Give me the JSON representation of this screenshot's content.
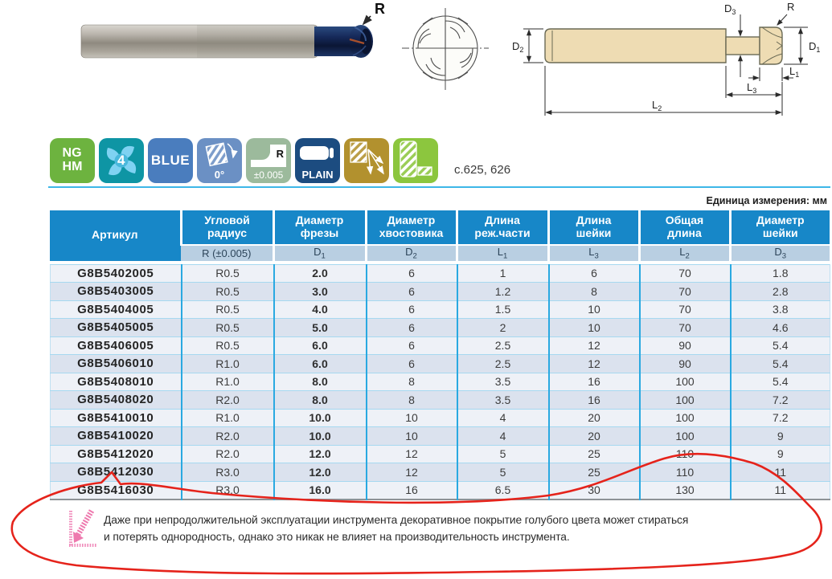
{
  "photo": {
    "radius_label": "R"
  },
  "cross_section": {
    "flutes": 4
  },
  "dimension_diagram": {
    "d2": {
      "base": "D",
      "sub": "2"
    },
    "d3": {
      "base": "D",
      "sub": "3"
    },
    "r": {
      "base": "R",
      "sub": ""
    },
    "d1": {
      "base": "D",
      "sub": "1"
    },
    "l1": {
      "base": "L",
      "sub": "1"
    },
    "l3": {
      "base": "L",
      "sub": "3"
    },
    "l2": {
      "base": "L",
      "sub": "2"
    }
  },
  "badges": {
    "nghm": {
      "line1": "NG",
      "line2": "HM",
      "color": "#6db33f"
    },
    "flutes": {
      "label": "4",
      "color": "#0e95a4"
    },
    "coating": {
      "label": "BLUE",
      "color": "#4a7dbe"
    },
    "angle": {
      "label": "0°",
      "color": "#6b90c4"
    },
    "radius_tol": {
      "label": "R",
      "sub": "±0.005",
      "color": "#9cba9c"
    },
    "shank": {
      "label": "PLAIN",
      "color": "#1c4c80"
    },
    "ramping": {
      "color": "#b2912e"
    },
    "slotting": {
      "color": "#8cc63e"
    },
    "page_ref": "с.625, 626"
  },
  "units_note": "Единица измерения: мм",
  "table": {
    "columns": [
      {
        "t1": "Артикул",
        "t2": "",
        "dim": "",
        "dim_sub": ""
      },
      {
        "t1": "Угловой",
        "t2": "радиус",
        "dim": "R (±0.005)",
        "dim_sub": ""
      },
      {
        "t1": "Диаметр",
        "t2": "фрезы",
        "dim": "D",
        "dim_sub": "1"
      },
      {
        "t1": "Диаметр",
        "t2": "хвостовика",
        "dim": "D",
        "dim_sub": "2"
      },
      {
        "t1": "Длина",
        "t2": "реж.части",
        "dim": "L",
        "dim_sub": "1"
      },
      {
        "t1": "Длина",
        "t2": "шейки",
        "dim": "L",
        "dim_sub": "3"
      },
      {
        "t1": "Общая",
        "t2": "длина",
        "dim": "L",
        "dim_sub": "2"
      },
      {
        "t1": "Диаметр",
        "t2": "шейки",
        "dim": "D",
        "dim_sub": "3"
      }
    ],
    "rows": [
      [
        "G8B5402005",
        "R0.5",
        "2.0",
        "6",
        "1",
        "6",
        "70",
        "1.8"
      ],
      [
        "G8B5403005",
        "R0.5",
        "3.0",
        "6",
        "1.2",
        "8",
        "70",
        "2.8"
      ],
      [
        "G8B5404005",
        "R0.5",
        "4.0",
        "6",
        "1.5",
        "10",
        "70",
        "3.8"
      ],
      [
        "G8B5405005",
        "R0.5",
        "5.0",
        "6",
        "2",
        "10",
        "70",
        "4.6"
      ],
      [
        "G8B5406005",
        "R0.5",
        "6.0",
        "6",
        "2.5",
        "12",
        "90",
        "5.4"
      ],
      [
        "G8B5406010",
        "R1.0",
        "6.0",
        "6",
        "2.5",
        "12",
        "90",
        "5.4"
      ],
      [
        "G8B5408010",
        "R1.0",
        "8.0",
        "8",
        "3.5",
        "16",
        "100",
        "5.4"
      ],
      [
        "G8B5408020",
        "R2.0",
        "8.0",
        "8",
        "3.5",
        "16",
        "100",
        "7.2"
      ],
      [
        "G8B5410010",
        "R1.0",
        "10.0",
        "10",
        "4",
        "20",
        "100",
        "7.2"
      ],
      [
        "G8B5410020",
        "R2.0",
        "10.0",
        "10",
        "4",
        "20",
        "100",
        "9"
      ],
      [
        "G8B5412020",
        "R2.0",
        "12.0",
        "12",
        "5",
        "25",
        "110",
        "9"
      ],
      [
        "G8B5412030",
        "R3.0",
        "12.0",
        "12",
        "5",
        "25",
        "110",
        "11"
      ],
      [
        "G8B5416030",
        "R3.0",
        "16.0",
        "16",
        "6.5",
        "30",
        "130",
        "11"
      ]
    ]
  },
  "footnote": {
    "line1": "Даже при непродолжительной эксплуатации инструмента декоративное покрытие голубого цвета может стираться",
    "line2": "и потерять однородность, однако это никак не влияет на производительность инструмента."
  },
  "colors": {
    "header_blue": "#1787c8",
    "subheader_blue": "#b9cfe2",
    "grid_blue": "#2aa9e1",
    "annotation_red": "#e5231b",
    "note_pink": "#ee79ae"
  }
}
